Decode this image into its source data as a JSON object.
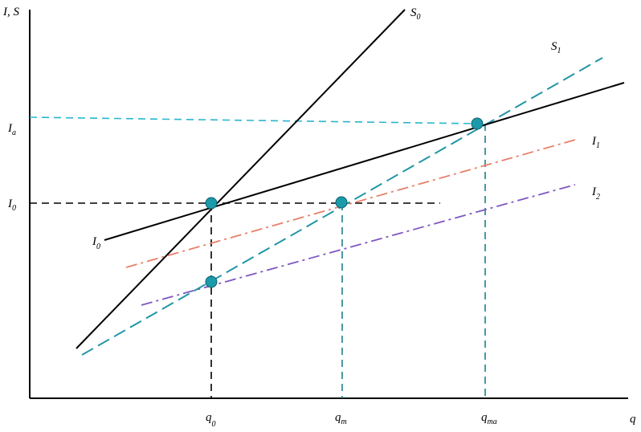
{
  "axis_labels": {
    "y_main": "I, S",
    "x_main": "q"
  },
  "tick_labels": {
    "Ia": {
      "main": "I",
      "sub": "a"
    },
    "I0": {
      "main": "I",
      "sub": "0"
    },
    "q0": {
      "main": "q",
      "sub": "0"
    },
    "qm": {
      "main": "q",
      "sub": "m"
    },
    "qma": {
      "main": "q",
      "sub": "ma"
    }
  },
  "curve_labels": {
    "S0": {
      "main": "S",
      "sub": "0"
    },
    "S1": {
      "main": "S",
      "sub": "1"
    },
    "I0curve": {
      "main": "I",
      "sub": "0"
    },
    "I1": {
      "main": "I",
      "sub": "1"
    },
    "I2": {
      "main": "I",
      "sub": "2"
    }
  },
  "colors": {
    "axis": "#000000",
    "solid_lines": "#000000",
    "s1_dashed": "#2196a6",
    "ia_dashed": "#29b6cc",
    "i1_dashdot": "#e8806a",
    "i2_dashdot": "#7e57c2",
    "guide_black": "#000000",
    "guide_teal": "#1e7f8c",
    "points": "#1b9aaa",
    "point_stroke": "#0d5f6b"
  }
}
